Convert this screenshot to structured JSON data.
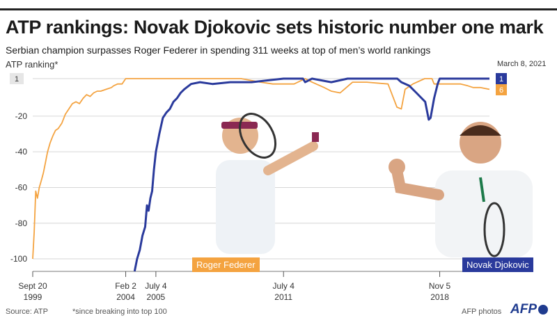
{
  "header": {
    "title": "ATP rankings: Novak Djokovic sets historic number one mark",
    "subtitle": "Serbian champion surpasses Roger Federer in spending 311 weeks at top of men’s world rankings",
    "ylabel": "ATP ranking*",
    "date_label": "March 8, 2021"
  },
  "footer": {
    "source": "Source: ATP",
    "note": "*since breaking into top 100",
    "credit": "AFP photos",
    "logo": "AFP"
  },
  "labels": {
    "federer": "Roger Federer",
    "djokovic": "Novak Djokovic"
  },
  "chart_data": {
    "type": "line",
    "title": "ATP rankings: Novak Djokovic sets historic number one mark",
    "ylabel": "ATP ranking*",
    "ylim": [
      -107,
      1
    ],
    "y_inverted": true,
    "y_ticks": [
      {
        "value": 1,
        "label": "1"
      },
      {
        "value": -20,
        "label": "-20"
      },
      {
        "value": -40,
        "label": "-40"
      },
      {
        "value": -60,
        "label": "-60"
      },
      {
        "value": -80,
        "label": "-80"
      },
      {
        "value": -100,
        "label": "-100"
      }
    ],
    "x_range": [
      "1999-09-20",
      "2021-03-08"
    ],
    "x_ticks": [
      {
        "date": "1999-09-20",
        "line1": "Sept 20",
        "line2": "1999"
      },
      {
        "date": "2004-02-02",
        "line1": "Feb 2",
        "line2": "2004"
      },
      {
        "date": "2005-07-04",
        "line1": "July 4",
        "line2": "2005"
      },
      {
        "date": "2011-07-04",
        "line1": "July 4",
        "line2": "2011"
      },
      {
        "date": "2018-11-05",
        "line1": "Nov 5",
        "line2": "2018"
      }
    ],
    "grid": true,
    "series": [
      {
        "name": "Roger Federer",
        "color": "#f4a340",
        "end_badge": "6",
        "points": [
          [
            "1999-09-20",
            -100
          ],
          [
            "1999-10-15",
            -85
          ],
          [
            "1999-11-10",
            -62
          ],
          [
            "1999-12-10",
            -66
          ],
          [
            "2000-01-10",
            -60
          ],
          [
            "2000-02-15",
            -56
          ],
          [
            "2000-03-20",
            -52
          ],
          [
            "2000-04-20",
            -47
          ],
          [
            "2000-06-01",
            -40
          ],
          [
            "2000-07-15",
            -35
          ],
          [
            "2000-09-01",
            -31
          ],
          [
            "2000-10-15",
            -28
          ],
          [
            "2000-12-01",
            -27
          ],
          [
            "2001-02-01",
            -24
          ],
          [
            "2001-04-01",
            -19
          ],
          [
            "2001-06-01",
            -16
          ],
          [
            "2001-08-01",
            -13
          ],
          [
            "2001-10-01",
            -12
          ],
          [
            "2001-12-01",
            -13
          ],
          [
            "2002-02-01",
            -10
          ],
          [
            "2002-04-01",
            -8
          ],
          [
            "2002-06-01",
            -9
          ],
          [
            "2002-08-01",
            -7
          ],
          [
            "2002-10-01",
            -6
          ],
          [
            "2002-12-01",
            -6
          ],
          [
            "2003-03-01",
            -5
          ],
          [
            "2003-06-01",
            -4
          ],
          [
            "2003-07-10",
            -3
          ],
          [
            "2003-09-15",
            -2
          ],
          [
            "2003-12-01",
            -2
          ],
          [
            "2004-02-02",
            1
          ],
          [
            "2008-08-18",
            1
          ],
          [
            "2009-07-06",
            1
          ],
          [
            "2010-06-07",
            -1
          ],
          [
            "2011-01-01",
            -2
          ],
          [
            "2011-07-04",
            -2
          ],
          [
            "2012-01-01",
            -2
          ],
          [
            "2012-07-09",
            1
          ],
          [
            "2012-11-05",
            -1
          ],
          [
            "2013-06-01",
            -4
          ],
          [
            "2013-10-01",
            -6
          ],
          [
            "2014-03-01",
            -7
          ],
          [
            "2014-10-01",
            -1
          ],
          [
            "2015-06-01",
            -1
          ],
          [
            "2016-06-01",
            -2
          ],
          [
            "2016-11-01",
            -15
          ],
          [
            "2017-01-15",
            -16
          ],
          [
            "2017-03-20",
            -5
          ],
          [
            "2017-08-01",
            -2
          ],
          [
            "2018-02-19",
            1
          ],
          [
            "2018-06-25",
            1
          ],
          [
            "2018-08-01",
            -2
          ],
          [
            "2018-11-05",
            -2
          ],
          [
            "2019-06-01",
            -2
          ],
          [
            "2019-11-01",
            -2
          ],
          [
            "2020-03-01",
            -3
          ],
          [
            "2020-06-01",
            -4
          ],
          [
            "2020-10-01",
            -4
          ],
          [
            "2021-03-08",
            -5
          ]
        ]
      },
      {
        "name": "Novak Djokovic",
        "color": "#2a3a9c",
        "end_badge": "1",
        "points": [
          [
            "2004-07-04",
            -107
          ],
          [
            "2004-08-15",
            -100
          ],
          [
            "2004-10-01",
            -95
          ],
          [
            "2004-11-15",
            -87
          ],
          [
            "2005-01-01",
            -82
          ],
          [
            "2005-02-01",
            -70
          ],
          [
            "2005-03-01",
            -73
          ],
          [
            "2005-04-01",
            -66
          ],
          [
            "2005-05-01",
            -62
          ],
          [
            "2005-06-01",
            -50
          ],
          [
            "2005-07-04",
            -40
          ],
          [
            "2005-09-01",
            -30
          ],
          [
            "2005-11-01",
            -21
          ],
          [
            "2006-01-01",
            -18
          ],
          [
            "2006-03-01",
            -16
          ],
          [
            "2006-05-01",
            -12
          ],
          [
            "2006-07-01",
            -10
          ],
          [
            "2006-09-01",
            -7
          ],
          [
            "2006-11-01",
            -5
          ],
          [
            "2007-03-01",
            -2
          ],
          [
            "2007-08-01",
            -1
          ],
          [
            "2008-03-01",
            -2
          ],
          [
            "2009-01-01",
            -1
          ],
          [
            "2010-01-01",
            -1
          ],
          [
            "2011-07-04",
            1
          ],
          [
            "2012-06-01",
            1
          ],
          [
            "2012-07-09",
            -1
          ],
          [
            "2012-11-05",
            1
          ],
          [
            "2013-10-01",
            -1
          ],
          [
            "2014-07-07",
            1
          ],
          [
            "2016-11-07",
            1
          ],
          [
            "2017-01-15",
            -1
          ],
          [
            "2017-06-01",
            -3
          ],
          [
            "2017-10-01",
            -7
          ],
          [
            "2018-03-01",
            -12
          ],
          [
            "2018-05-01",
            -22
          ],
          [
            "2018-06-01",
            -21
          ],
          [
            "2018-08-01",
            -10
          ],
          [
            "2018-10-01",
            -2
          ],
          [
            "2018-11-05",
            1
          ],
          [
            "2019-11-04",
            1
          ],
          [
            "2020-02-03",
            1
          ],
          [
            "2021-03-08",
            1
          ]
        ]
      }
    ]
  }
}
